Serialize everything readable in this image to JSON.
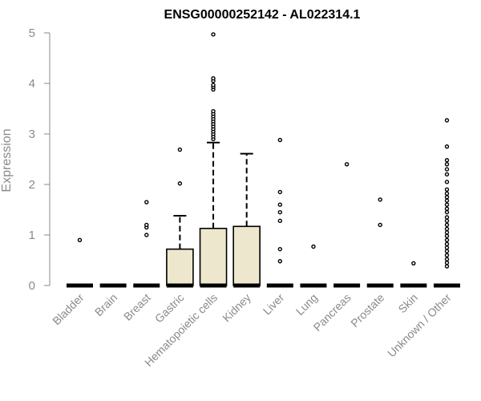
{
  "chart_data": {
    "type": "box",
    "title": "ENSG00000252142 - AL022314.1",
    "xlabel": "",
    "ylabel": "Expression",
    "ylim": [
      0,
      5
    ],
    "yticks": [
      0,
      1,
      2,
      3,
      4,
      5
    ],
    "grid": false,
    "legend": "none",
    "box_fill": "#ede7cd",
    "categories": [
      "Bladder",
      "Brain",
      "Breast",
      "Gastric",
      "Hematopoietic cells",
      "Kidney",
      "Liver",
      "Lung",
      "Pancreas",
      "Prostate",
      "Skin",
      "Unknown / Other"
    ],
    "boxes": [
      {
        "q1": 0,
        "median": 0,
        "q3": 0,
        "whisker_low": 0,
        "whisker_high": 0,
        "outliers": [
          0.9
        ]
      },
      {
        "q1": 0,
        "median": 0,
        "q3": 0,
        "whisker_low": 0,
        "whisker_high": 0,
        "outliers": []
      },
      {
        "q1": 0,
        "median": 0,
        "q3": 0,
        "whisker_low": 0,
        "whisker_high": 0,
        "outliers": [
          1.0,
          1.15,
          1.2,
          1.65
        ]
      },
      {
        "q1": 0,
        "median": 0,
        "q3": 0.72,
        "whisker_low": 0,
        "whisker_high": 1.38,
        "outliers": [
          2.02,
          2.69
        ]
      },
      {
        "q1": 0,
        "median": 0,
        "q3": 1.13,
        "whisker_low": 0,
        "whisker_high": 2.83,
        "outliers": [
          2.9,
          2.95,
          3.0,
          3.05,
          3.1,
          3.15,
          3.2,
          3.25,
          3.3,
          3.35,
          3.4,
          3.45,
          3.88,
          3.93,
          3.97,
          4.05,
          4.1,
          4.97
        ]
      },
      {
        "q1": 0,
        "median": 0,
        "q3": 1.17,
        "whisker_low": 0,
        "whisker_high": 2.61,
        "outliers": []
      },
      {
        "q1": 0,
        "median": 0,
        "q3": 0,
        "whisker_low": 0,
        "whisker_high": 0,
        "outliers": [
          0.48,
          0.72,
          1.28,
          1.45,
          1.6,
          1.85,
          2.88
        ]
      },
      {
        "q1": 0,
        "median": 0,
        "q3": 0,
        "whisker_low": 0,
        "whisker_high": 0,
        "outliers": [
          0.77
        ]
      },
      {
        "q1": 0,
        "median": 0,
        "q3": 0,
        "whisker_low": 0,
        "whisker_high": 0,
        "outliers": [
          2.4
        ]
      },
      {
        "q1": 0,
        "median": 0,
        "q3": 0,
        "whisker_low": 0,
        "whisker_high": 0,
        "outliers": [
          1.2,
          1.7
        ]
      },
      {
        "q1": 0,
        "median": 0,
        "q3": 0,
        "whisker_low": 0,
        "whisker_high": 0,
        "outliers": [
          0.44
        ]
      },
      {
        "q1": 0,
        "median": 0,
        "q3": 0,
        "whisker_low": 0,
        "whisker_high": 0,
        "outliers": [
          0.38,
          0.45,
          0.52,
          0.6,
          0.68,
          0.75,
          0.82,
          0.9,
          0.98,
          1.05,
          1.12,
          1.2,
          1.28,
          1.35,
          1.45,
          1.52,
          1.6,
          1.68,
          1.75,
          1.82,
          1.9,
          2.05,
          2.2,
          2.3,
          2.4,
          2.48,
          2.75,
          3.27
        ]
      }
    ]
  }
}
